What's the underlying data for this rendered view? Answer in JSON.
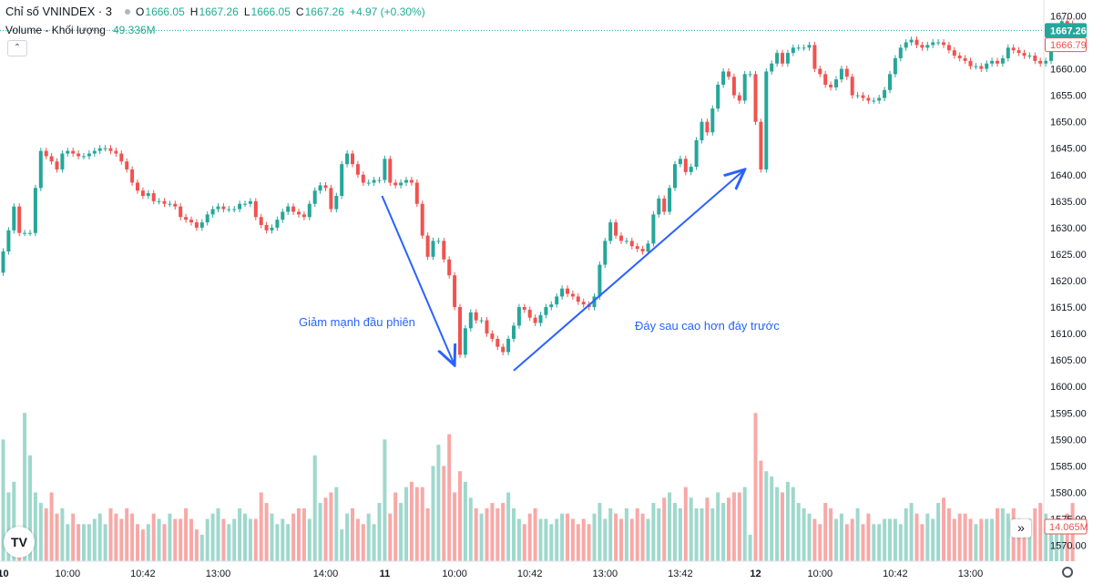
{
  "legend": {
    "title": "Chỉ số VNINDEX · 3",
    "open_key": "O",
    "open": "1666.05",
    "high_key": "H",
    "high": "1667.26",
    "low_key": "L",
    "low": "1666.05",
    "close_key": "C",
    "close": "1667.26",
    "change": "+4.97 (+0.30%)",
    "volume_label": "Volume - Khối lượng",
    "volume_value": "49.336M"
  },
  "icons": {
    "collapse": "chevron-up-icon",
    "logo": "tradingview-logo-icon",
    "scroll": "double-chevron-right-icon",
    "settings": "gear-icon"
  },
  "controls": {
    "collapse_glyph": "⌃",
    "logo_text": "TV",
    "scroll_glyph": "»"
  },
  "colors": {
    "up": "#26a69a",
    "down": "#ef5350",
    "volume_up": "#9fd8cd",
    "volume_down": "#f7a9a7",
    "annotation": "#2962ff"
  },
  "chart_data": {
    "type": "candlestick",
    "symbol": "Chỉ số VNINDEX",
    "interval": "3",
    "y_axis": {
      "range": [
        1567,
        1673
      ],
      "ticks": [
        1570,
        1575,
        1580,
        1585,
        1590,
        1595,
        1600,
        1605,
        1610,
        1615,
        1620,
        1625,
        1630,
        1635,
        1640,
        1645,
        1650,
        1655,
        1660,
        1665,
        1670
      ]
    },
    "x_axis": {
      "ticks": [
        {
          "label": "10",
          "bold": true,
          "index": 0
        },
        {
          "label": "10:00",
          "bold": false,
          "index": 12
        },
        {
          "label": "10:42",
          "bold": false,
          "index": 26
        },
        {
          "label": "13:00",
          "bold": false,
          "index": 40
        },
        {
          "label": "14:00",
          "bold": false,
          "index": 60
        },
        {
          "label": "11",
          "bold": true,
          "index": 71
        },
        {
          "label": "10:00",
          "bold": false,
          "index": 84
        },
        {
          "label": "10:42",
          "bold": false,
          "index": 98
        },
        {
          "label": "13:00",
          "bold": false,
          "index": 112
        },
        {
          "label": "13:42",
          "bold": false,
          "index": 126
        },
        {
          "label": "12",
          "bold": true,
          "index": 140
        },
        {
          "label": "10:00",
          "bold": false,
          "index": 152
        },
        {
          "label": "10:42",
          "bold": false,
          "index": 166
        },
        {
          "label": "13:00",
          "bold": false,
          "index": 180
        }
      ]
    },
    "price_labels": [
      {
        "value": 1667.26,
        "text": "1667.26",
        "style": "up"
      },
      {
        "value": 1666.79,
        "text": "1666.79",
        "style": "down-outline"
      }
    ],
    "volume_label": {
      "text": "14.065M"
    },
    "annotations": [
      {
        "text": "Giảm mạnh đầu phiên",
        "arrow_from": [
          70.5,
          1636
        ],
        "arrow_to": [
          84,
          1604
        ]
      },
      {
        "text": "Đáy sau cao hơn đáy trước",
        "arrow_from": [
          95,
          1603
        ],
        "arrow_to": [
          138,
          1641
        ]
      }
    ],
    "closes": [
      1625.5,
      1629.5,
      1634,
      1629,
      1629,
      1629,
      1637.5,
      1644.5,
      1643.5,
      1642.5,
      1641,
      1644,
      1644.5,
      1644,
      1643.5,
      1643.5,
      1644,
      1644.5,
      1645,
      1645,
      1644.5,
      1644,
      1642.5,
      1641,
      1638.5,
      1637,
      1636,
      1636.5,
      1635,
      1635,
      1634.5,
      1634.5,
      1634,
      1632,
      1631.5,
      1631,
      1630,
      1631,
      1632.5,
      1633.5,
      1634,
      1633.5,
      1633.5,
      1633.5,
      1634.5,
      1634.5,
      1635,
      1632,
      1630.5,
      1629.5,
      1630,
      1631.5,
      1633,
      1634,
      1633,
      1632.5,
      1632,
      1634.5,
      1637,
      1638,
      1637.5,
      1633.5,
      1636,
      1642,
      1644,
      1642,
      1640,
      1638.5,
      1638.5,
      1639,
      1639,
      1643,
      1638.5,
      1638,
      1638.5,
      1639,
      1638.5,
      1634.5,
      1628.5,
      1624.5,
      1627.5,
      1627.5,
      1624,
      1621,
      1615,
      1606,
      1611,
      1614,
      1612.5,
      1612.5,
      1610,
      1609,
      1607.5,
      1606.5,
      1609,
      1611.5,
      1615,
      1614.5,
      1613,
      1612,
      1613.5,
      1615,
      1615.5,
      1617,
      1618.5,
      1617.5,
      1617,
      1616,
      1615.5,
      1615,
      1617,
      1623,
      1627.5,
      1631,
      1628.5,
      1627.5,
      1627.5,
      1626.5,
      1626,
      1625.5,
      1627,
      1632.5,
      1635.5,
      1633,
      1637.5,
      1642,
      1643,
      1640.5,
      1641.5,
      1646.5,
      1650,
      1648,
      1652.5,
      1657,
      1659.5,
      1658.5,
      1655,
      1654,
      1659,
      1659,
      1650,
      1641,
      1659.5,
      1661,
      1663,
      1661,
      1663,
      1664,
      1664,
      1664,
      1664.5,
      1660,
      1659,
      1657,
      1656.5,
      1658,
      1660,
      1658.5,
      1655,
      1655,
      1654.5,
      1654,
      1654,
      1654.5,
      1656,
      1659,
      1662,
      1664,
      1665,
      1665.5,
      1664.5,
      1664,
      1664.5,
      1665,
      1665,
      1664.5,
      1663.5,
      1662.5,
      1662,
      1661.5,
      1660.5,
      1660.5,
      1660,
      1661,
      1661.5,
      1661,
      1662,
      1664,
      1663.5,
      1663,
      1662.5,
      1662.5,
      1661.5,
      1661,
      1661.5,
      1665,
      1668,
      1669,
      1668.5,
      1667.26
    ],
    "volume": [
      1590,
      1580,
      1582,
      1573,
      1595,
      1587,
      1580,
      1578,
      1577,
      1580,
      1576,
      1577,
      1574,
      1576,
      1574,
      1574,
      1574,
      1575,
      1576,
      1574,
      1577,
      1576,
      1575,
      1577,
      1576,
      1574,
      1573,
      1574,
      1576,
      1575,
      1574,
      1576,
      1575,
      1575,
      1577,
      1575,
      1573,
      1572,
      1575,
      1576,
      1577,
      1575,
      1574,
      1575,
      1577,
      1576,
      1575,
      1575,
      1580,
      1578,
      1576,
      1574,
      1575,
      1574,
      1576,
      1577,
      1577,
      1575,
      1587,
      1578,
      1579,
      1580,
      1581,
      1573,
      1576,
      1577,
      1575,
      1574,
      1576,
      1574,
      1578,
      1590,
      1576,
      1580,
      1578,
      1581,
      1582,
      1581,
      1581,
      1577,
      1585,
      1589,
      1585,
      1591,
      1580,
      1584,
      1582,
      1579,
      1577,
      1576,
      1577,
      1578,
      1577,
      1578,
      1580,
      1577,
      1575,
      1574,
      1576,
      1577,
      1575,
      1575,
      1574,
      1575,
      1576,
      1576,
      1575,
      1574,
      1575,
      1574,
      1576,
      1578,
      1575,
      1577,
      1576,
      1575,
      1577,
      1575,
      1577,
      1576,
      1575,
      1578,
      1577,
      1579,
      1580,
      1578,
      1577,
      1581,
      1579,
      1577,
      1577,
      1579,
      1577,
      1580,
      1578,
      1579,
      1580,
      1580,
      1581,
      1572,
      1595,
      1586,
      1584,
      1583,
      1581,
      1580,
      1582,
      1581,
      1578,
      1577,
      1576,
      1575,
      1574,
      1578,
      1577,
      1575,
      1576,
      1574,
      1575,
      1577,
      1574,
      1576,
      1574,
      1574,
      1575,
      1575,
      1575,
      1574,
      1577,
      1578,
      1576,
      1574,
      1576,
      1575,
      1578,
      1579,
      1577,
      1575,
      1576,
      1576,
      1575,
      1574,
      1575,
      1575,
      1575,
      1577,
      1577,
      1576,
      1577,
      1575,
      1574,
      1575,
      1577,
      1578,
      1576,
      1575,
      1575,
      1575,
      1576,
      1578
    ]
  }
}
